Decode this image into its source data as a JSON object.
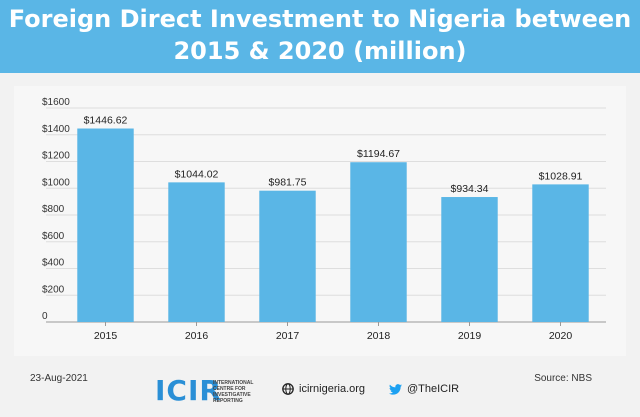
{
  "header": {
    "title_line1": "Foreign Direct Investment to Nigeria between",
    "title_line2": "2015 & 2020 (million)",
    "background": "#5ab6e6"
  },
  "footer": {
    "date": "23-Aug-2021",
    "source": "Source: NBS",
    "logo_text": "ICIR",
    "logo_subtext": "INTERNATIONAL CENTRE FOR INVESTIGATIVE REPORTING",
    "website": "icirnigeria.org",
    "twitter": "@TheICIR"
  },
  "chart_data": {
    "type": "bar",
    "title": "Foreign Direct Investment to Nigeria between 2015 & 2020 (million)",
    "categories": [
      "2015",
      "2016",
      "2017",
      "2018",
      "2019",
      "2020"
    ],
    "values": [
      1446.62,
      1044.02,
      981.75,
      1194.67,
      934.34,
      1028.91
    ],
    "value_labels": [
      "$1446.62",
      "$1044.02",
      "$981.75",
      "$1194.67",
      "$934.34",
      "$1028.91"
    ],
    "yticks": [
      0,
      200,
      400,
      600,
      800,
      1000,
      1200,
      1400,
      1600
    ],
    "ytick_labels": [
      "0",
      "$200",
      "$400",
      "$600",
      "$800",
      "$1000",
      "$1200",
      "$1400",
      "$1600"
    ],
    "ylim": [
      0,
      1600
    ],
    "xlabel": "",
    "ylabel": "",
    "bar_color": "#5ab6e6",
    "grid": true
  }
}
